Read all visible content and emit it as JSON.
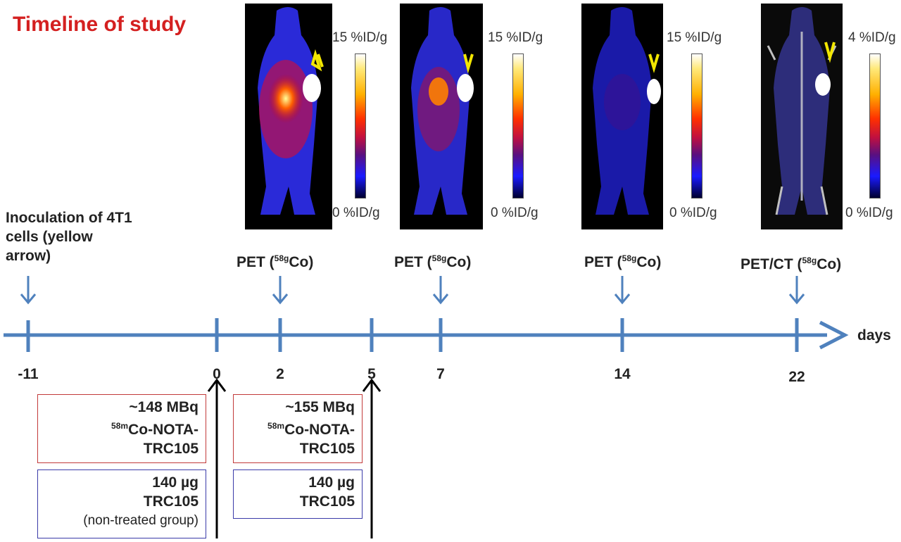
{
  "title": "Timeline of study",
  "colorbars": [
    {
      "max": "15 %ID/g",
      "min": "0 %ID/g"
    },
    {
      "max": "15 %ID/g",
      "min": "0 %ID/g"
    },
    {
      "max": "15 %ID/g",
      "min": "0 %ID/g"
    },
    {
      "max": "4 %ID/g",
      "min": "0 %ID/g"
    }
  ],
  "inoculation": {
    "line1": "Inoculation of 4T1",
    "line2": "cells (yellow",
    "line3": "arrow)"
  },
  "imaging": [
    {
      "prefix": "PET (",
      "isotope_mass": "58g",
      "element": "Co)"
    },
    {
      "prefix": "PET (",
      "isotope_mass": "58g",
      "element": "Co)"
    },
    {
      "prefix": "PET (",
      "isotope_mass": "58g",
      "element": "Co)"
    },
    {
      "prefix": "PET/CT (",
      "isotope_mass": "58g",
      "element": "Co)"
    }
  ],
  "timeline": {
    "ticks": [
      "-11",
      "0",
      "2",
      "5",
      "7",
      "14",
      "22"
    ],
    "axis_label": "days"
  },
  "dose_boxes": [
    {
      "line1": "~148 MBq",
      "isotope_mass": "58m",
      "line2": "Co-NOTA-",
      "line3": "TRC105"
    },
    {
      "line1": "~155 MBq",
      "isotope_mass": "58m",
      "line2": "Co-NOTA-",
      "line3": "TRC105"
    }
  ],
  "antibody_boxes": [
    {
      "line1": "140 µg",
      "line2": "TRC105",
      "note": "(non-treated group)"
    },
    {
      "line1": "140 µg",
      "line2": "TRC105",
      "note": ""
    }
  ],
  "colors": {
    "title": "#d42020",
    "timeline": "#4f81bd",
    "arrow_black": "#000000",
    "tumor_arrow": "#f2e600",
    "dose_border": "#c23a3a",
    "antibody_border": "#3a3aa8"
  }
}
